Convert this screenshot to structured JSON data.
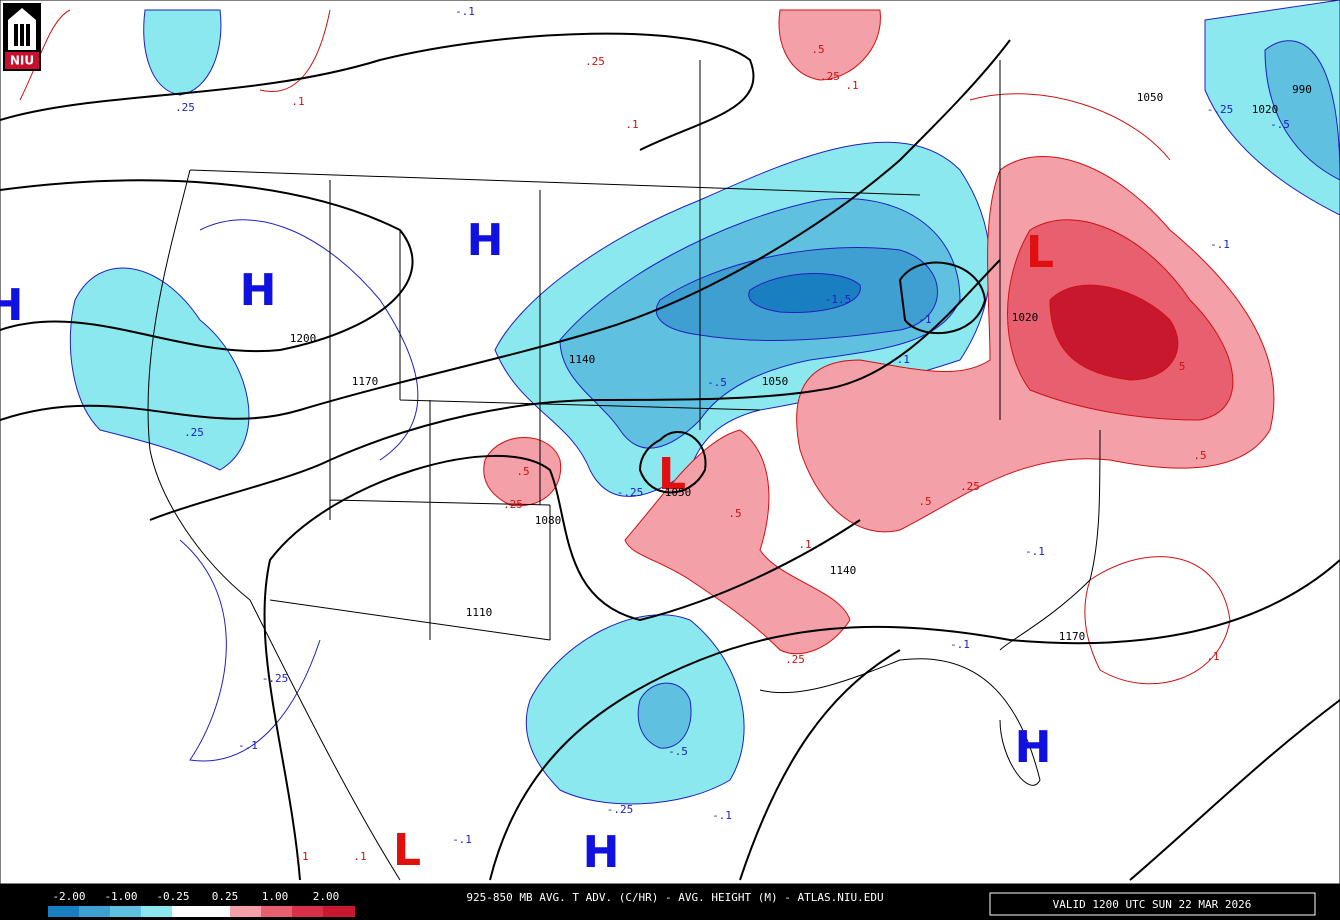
{
  "logo": "NIU",
  "footer": {
    "title": "925-850 MB AVG. T ADV. (C/HR) - AVG. HEIGHT (M) - ATLAS.NIU.EDU",
    "valid": "VALID 1200 UTC SUN 22 MAR 2026"
  },
  "colorbar": {
    "labels": [
      "-2.00",
      "-1.00",
      "-0.25",
      "0.25",
      "1.00",
      "2.00"
    ]
  },
  "pressure_centers": [
    "H",
    "H",
    "H",
    "L",
    "L",
    "H",
    "L",
    "H"
  ],
  "height_labels": [
    "1200",
    "1170",
    "1140",
    "1050",
    "1050",
    "1080",
    "1110",
    "1140",
    "1170",
    "1050",
    "1020",
    "990",
    "1020"
  ],
  "cold_labels": [
    "-.1",
    ".25",
    ".25",
    "-.5",
    "-1.5",
    "-1",
    "-.1",
    "-.25",
    "-.25",
    "-.1",
    "-.5",
    "-.25",
    "-.1",
    "-.1",
    "-.1",
    "-.1",
    "-.25",
    "-.5",
    "-.1"
  ],
  "warm_labels": [
    ".25",
    ".1",
    ".1",
    ".5",
    ".25",
    ".1",
    ".5",
    ".25",
    ".5",
    ".1",
    ".25",
    ".5",
    ".25",
    ".5",
    "5",
    ".1",
    ".1",
    ".1"
  ]
}
